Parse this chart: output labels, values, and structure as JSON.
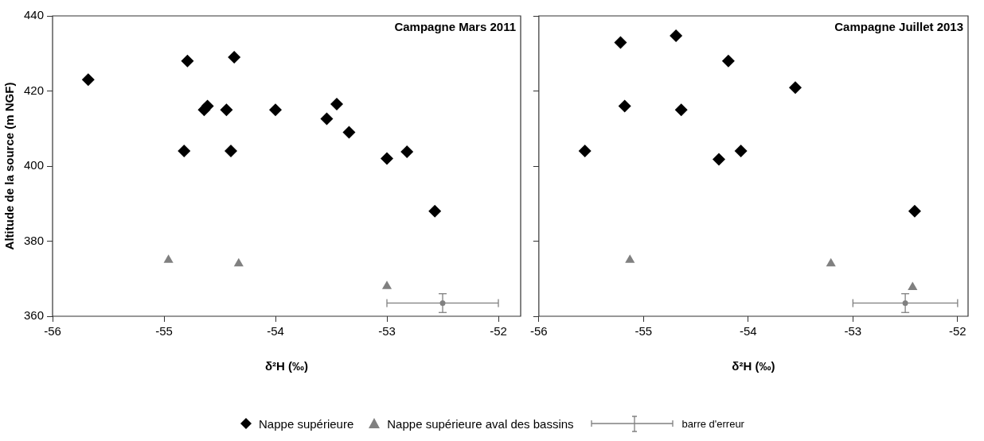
{
  "chart_data": [
    {
      "type": "scatter",
      "title": "Campagne Mars 2011",
      "xlabel": "δ²H (‰)",
      "ylabel": "Altitude de la source (m NGF)",
      "xlim": [
        -56,
        -51.8
      ],
      "xticks": [
        -56,
        -55,
        -54,
        -53,
        -52
      ],
      "ylim": [
        360,
        440
      ],
      "yticks": [
        360,
        380,
        400,
        420,
        440
      ],
      "grid": false,
      "legend": "bottom",
      "series": [
        {
          "name": "Nappe supérieure",
          "color": "#000000",
          "marker": "diamond",
          "x": [
            -55.68,
            -54.79,
            -54.37,
            -54.64,
            -54.61,
            -54.44,
            -54.0,
            -54.82,
            -54.4,
            -53.54,
            -53.45,
            -53.34,
            -53.0,
            -52.82,
            -52.57
          ],
          "values": [
            423,
            428,
            429,
            415,
            416,
            415,
            415,
            404,
            404,
            412.6,
            416.5,
            409,
            402,
            403.8,
            388
          ]
        },
        {
          "name": "Nappe supérieure aval des bassins",
          "color": "#808080",
          "marker": "triangle",
          "x": [
            -54.96,
            -54.33,
            -53.0
          ],
          "values": [
            375,
            374,
            368
          ]
        },
        {
          "name": "barre d'erreur",
          "color": "#808080",
          "marker": "circle",
          "x": [
            -52.5
          ],
          "values": [
            363.5
          ],
          "errors": [
            2.5
          ],
          "xerrors": [
            0.5
          ]
        }
      ]
    },
    {
      "type": "scatter",
      "title": "Campagne Juillet 2013",
      "xlabel": "δ²H (‰)",
      "xlim": [
        -56,
        -51.9
      ],
      "xticks": [
        -56,
        -55,
        -54,
        -53,
        -52
      ],
      "ylim": [
        360,
        440
      ],
      "yticks": [
        360,
        380,
        400,
        420,
        440
      ],
      "grid": false,
      "tick_labels": "x",
      "series": [
        {
          "color": "#000000",
          "marker": "diamond",
          "x": [
            -55.22,
            -54.69,
            -54.19,
            -53.55,
            -55.18,
            -54.64,
            -55.56,
            -54.28,
            -54.07,
            -52.41
          ],
          "values": [
            432.9,
            434.7,
            428,
            420.9,
            416,
            415,
            404,
            401.8,
            404,
            388
          ]
        },
        {
          "color": "#808080",
          "marker": "triangle",
          "x": [
            -55.13,
            -53.21,
            -52.43
          ],
          "values": [
            375,
            374,
            367.7
          ]
        },
        {
          "color": "#808080",
          "marker": "circle",
          "x": [
            -52.5
          ],
          "values": [
            363.5
          ],
          "errors": [
            2.5
          ],
          "xerrors": [
            0.5
          ]
        }
      ]
    }
  ]
}
